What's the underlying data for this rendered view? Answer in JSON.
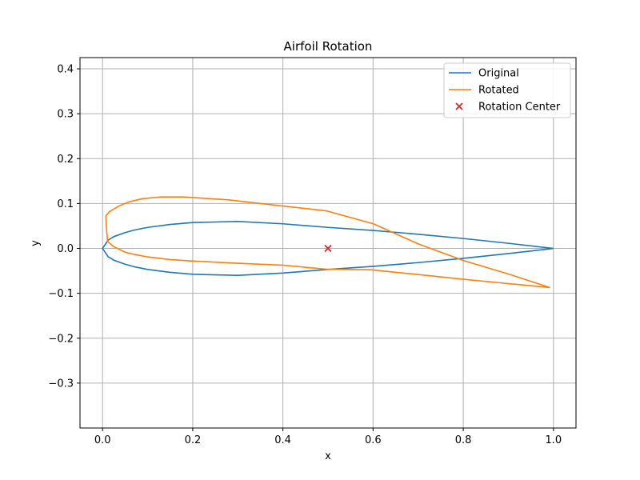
{
  "chart_data": {
    "type": "line",
    "title": "Airfoil Rotation",
    "xlabel": "x",
    "ylabel": "y",
    "xlim": [
      -0.05,
      1.05
    ],
    "ylim": [
      -0.4,
      0.425
    ],
    "xticks": [
      0.0,
      0.2,
      0.4,
      0.6,
      0.8,
      1.0
    ],
    "xtick_labels": [
      "0.0",
      "0.2",
      "0.4",
      "0.6",
      "0.8",
      "1.0"
    ],
    "yticks": [
      -0.3,
      -0.2,
      -0.1,
      0.0,
      0.1,
      0.2,
      0.3,
      0.4
    ],
    "ytick_labels": [
      "−0.3",
      "−0.2",
      "−0.1",
      "0.0",
      "0.1",
      "0.2",
      "0.3",
      "0.4"
    ],
    "grid": true,
    "legend_position": "top-right",
    "series": [
      {
        "name": "Original",
        "color": "#1f77b4",
        "points": [
          [
            1.0,
            0.0
          ],
          [
            0.9,
            0.0114
          ],
          [
            0.8,
            0.0221
          ],
          [
            0.7,
            0.0316
          ],
          [
            0.6,
            0.04
          ],
          [
            0.5,
            0.0468
          ],
          [
            0.4,
            0.0548
          ],
          [
            0.3,
            0.06
          ],
          [
            0.2,
            0.0576
          ],
          [
            0.15,
            0.0534
          ],
          [
            0.1,
            0.0468
          ],
          [
            0.07,
            0.0408
          ],
          [
            0.05,
            0.0352
          ],
          [
            0.025,
            0.0262
          ],
          [
            0.0125,
            0.0185
          ],
          [
            0.0,
            0.0
          ],
          [
            0.0125,
            -0.0185
          ],
          [
            0.025,
            -0.0262
          ],
          [
            0.05,
            -0.0352
          ],
          [
            0.07,
            -0.0408
          ],
          [
            0.1,
            -0.0468
          ],
          [
            0.15,
            -0.0534
          ],
          [
            0.2,
            -0.0576
          ],
          [
            0.3,
            -0.06
          ],
          [
            0.4,
            -0.0548
          ],
          [
            0.5,
            -0.0468
          ],
          [
            0.6,
            -0.04
          ],
          [
            0.7,
            -0.0316
          ],
          [
            0.8,
            -0.0221
          ],
          [
            0.9,
            -0.0114
          ],
          [
            1.0,
            0.0
          ]
        ]
      },
      {
        "name": "Rotated",
        "color": "#ff7f0e",
        "points": [
          [
            0.9924,
            -0.0872
          ],
          [
            0.8928,
            -0.0777
          ],
          [
            0.7934,
            -0.068
          ],
          [
            0.6938,
            -0.0575
          ],
          [
            0.5945,
            -0.0476
          ],
          [
            0.4987,
            -0.0465
          ],
          [
            0.3978,
            -0.0372
          ],
          [
            0.2986,
            -0.033
          ],
          [
            0.2007,
            -0.0282
          ],
          [
            0.1508,
            -0.025
          ],
          [
            0.1008,
            -0.0191
          ],
          [
            0.0707,
            -0.0135
          ],
          [
            0.0503,
            -0.0085
          ],
          [
            0.0238,
            0.0045
          ],
          [
            0.0113,
            0.0155
          ],
          [
            0.0087,
            0.0436
          ],
          [
            0.0074,
            0.0723
          ],
          [
            0.015,
            0.0819
          ],
          [
            0.037,
            0.0948
          ],
          [
            0.0589,
            0.1037
          ],
          [
            0.0877,
            0.1106
          ],
          [
            0.13,
            0.1147
          ],
          [
            0.179,
            0.1146
          ],
          [
            0.2791,
            0.1082
          ],
          [
            0.3769,
            0.097
          ],
          [
            0.4966,
            0.0836
          ],
          [
            0.6,
            0.055
          ],
          [
            0.7,
            0.01
          ],
          [
            0.8,
            -0.027
          ],
          [
            0.9,
            -0.057
          ],
          [
            0.9924,
            -0.0872
          ]
        ]
      }
    ],
    "markers": [
      {
        "name": "Rotation Center",
        "x": 0.5,
        "y": 0.0,
        "symbol": "x",
        "color": "#d62728"
      }
    ]
  }
}
